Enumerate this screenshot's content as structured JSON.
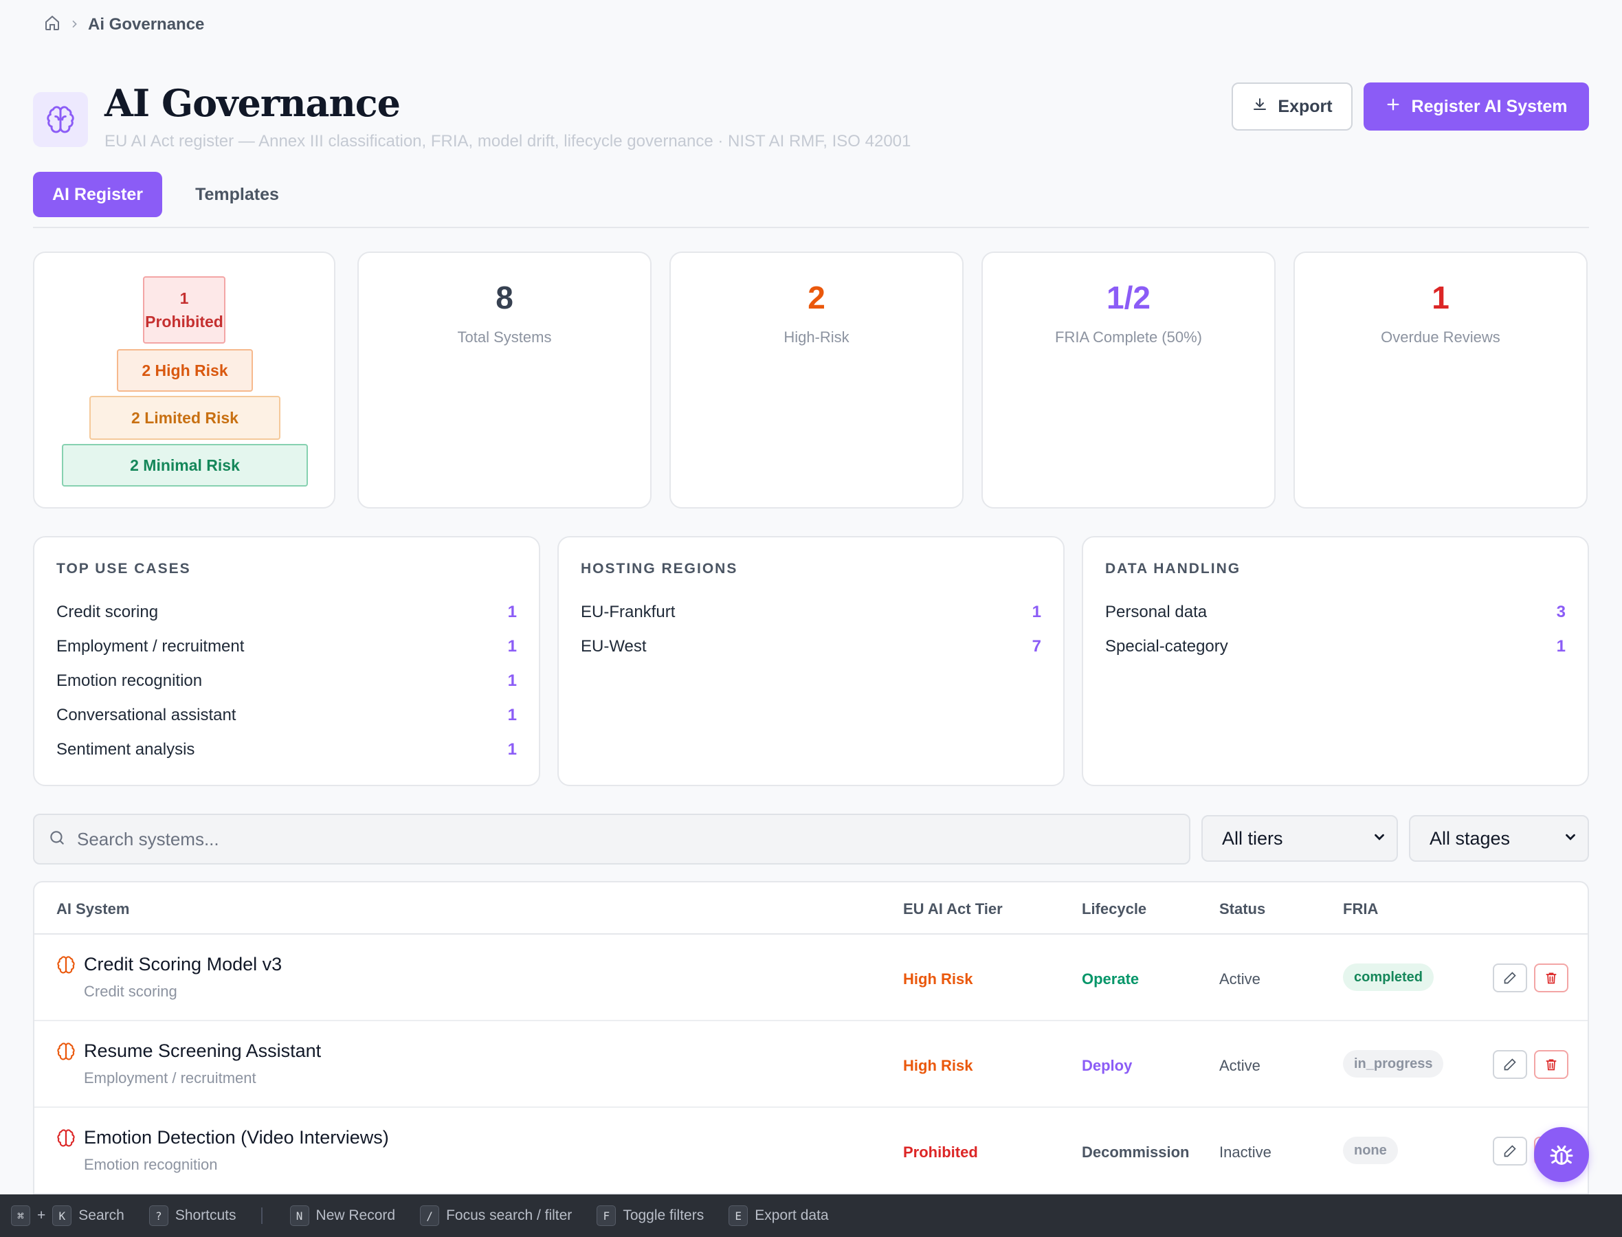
{
  "breadcrumb": {
    "current": "Ai Governance"
  },
  "header": {
    "title": "AI Governance",
    "subtitle": "EU AI Act register — Annex III classification, FRIA, model drift, lifecycle governance · NIST AI RMF, ISO 42001",
    "export_label": "Export",
    "register_label": "Register AI System"
  },
  "tabs": [
    {
      "label": "AI Register",
      "active": true
    },
    {
      "label": "Templates",
      "active": false
    }
  ],
  "pyramid": {
    "prohibited_count": "1",
    "prohibited_label": "Prohibited",
    "high": "2 High Risk",
    "limited": "2 Limited Risk",
    "minimal": "2 Minimal Risk"
  },
  "stats": [
    {
      "value": "8",
      "label": "Total Systems",
      "color": "#374151"
    },
    {
      "value": "2",
      "label": "High-Risk",
      "color": "#ea580c"
    },
    {
      "value": "1/2",
      "label": "FRIA Complete (50%)",
      "color": "#8b5cf6"
    },
    {
      "value": "1",
      "label": "Overdue Reviews",
      "color": "#dc2626"
    }
  ],
  "breakdowns": [
    {
      "title": "TOP USE CASES",
      "rows": [
        {
          "label": "Credit scoring",
          "count": "1"
        },
        {
          "label": "Employment / recruitment",
          "count": "1"
        },
        {
          "label": "Emotion recognition",
          "count": "1"
        },
        {
          "label": "Conversational assistant",
          "count": "1"
        },
        {
          "label": "Sentiment analysis",
          "count": "1"
        }
      ]
    },
    {
      "title": "HOSTING REGIONS",
      "rows": [
        {
          "label": "EU-Frankfurt",
          "count": "1"
        },
        {
          "label": "EU-West",
          "count": "7"
        }
      ]
    },
    {
      "title": "DATA HANDLING",
      "rows": [
        {
          "label": "Personal data",
          "count": "3"
        },
        {
          "label": "Special-category",
          "count": "1"
        }
      ]
    }
  ],
  "search": {
    "placeholder": "Search systems..."
  },
  "filters": {
    "tier": "All tiers",
    "stage": "All stages"
  },
  "table": {
    "columns": {
      "system": "AI System",
      "tier": "EU AI Act Tier",
      "lifecycle": "Lifecycle",
      "status": "Status",
      "fria": "FRIA"
    },
    "rows": [
      {
        "name": "Credit Scoring Model v3",
        "use_case": "Credit scoring",
        "tier": "High Risk",
        "lifecycle": "Operate",
        "status": "Active",
        "fria": "completed"
      },
      {
        "name": "Resume Screening Assistant",
        "use_case": "Employment / recruitment",
        "tier": "High Risk",
        "lifecycle": "Deploy",
        "status": "Active",
        "fria": "in_progress"
      },
      {
        "name": "Emotion Detection (Video Interviews)",
        "use_case": "Emotion recognition",
        "tier": "Prohibited",
        "lifecycle": "Decommission",
        "status": "Inactive",
        "fria": "none"
      }
    ]
  },
  "footer": {
    "cmd_key": "⌘",
    "plus": "+",
    "k_key": "K",
    "search": "Search",
    "help_key": "?",
    "shortcuts": "Shortcuts",
    "n_key": "N",
    "new_record": "New Record",
    "slash_key": "/",
    "focus_search": "Focus search / filter",
    "f_key": "F",
    "toggle_filters": "Toggle filters",
    "e_key": "E",
    "export_data": "Export data"
  },
  "colors": {
    "accent": "#8b5cf6",
    "high_risk": "#ea580c",
    "prohibited": "#dc2626",
    "operate": "#059669"
  }
}
